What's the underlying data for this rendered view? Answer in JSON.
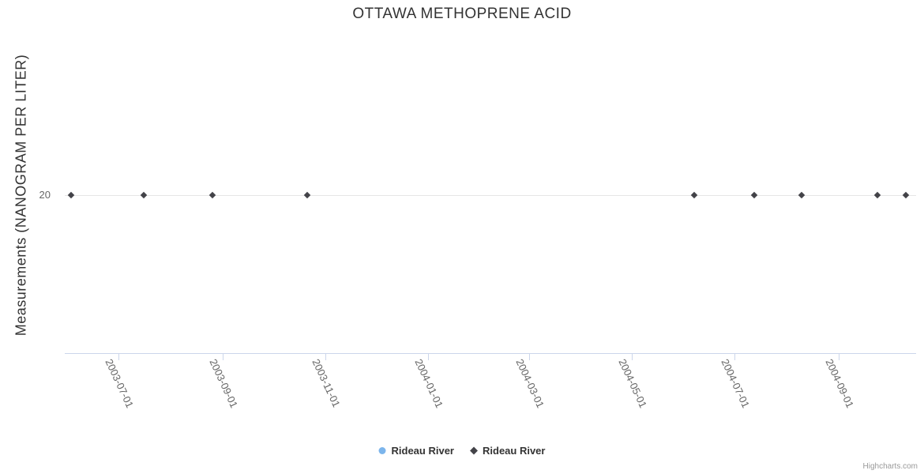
{
  "credits": {
    "label": "Highcharts.com"
  },
  "colors": {
    "title_text": "#333333",
    "axis_title_text": "#333333",
    "axis_label_text": "#666666",
    "axis_line": "#ccd6eb",
    "gridline": "#e6e6e6",
    "legend_text": "#333333",
    "credits_text": "#999999",
    "series_1": "#7cb5ec",
    "series_2": "#434348"
  },
  "chart_data": {
    "type": "scatter",
    "title": "OTTAWA METHOPRENE ACID",
    "xlabel": "",
    "ylabel": "Measurements (NANOGRAM PER LITER)",
    "x_ticks": [
      "2003-07-01",
      "2003-09-01",
      "2003-11-01",
      "2004-01-01",
      "2004-03-01",
      "2004-05-01",
      "2004-07-01",
      "2004-09-01"
    ],
    "x_tick_rotation_deg": 65,
    "y_ticks": [
      20
    ],
    "x_min": "2003-05-30",
    "x_max": "2004-10-17",
    "y_min": 0,
    "y_max": 40,
    "grid": "single horizontal gridline at y=20",
    "legend_position": "bottom-center",
    "series": [
      {
        "name": "Rideau River",
        "marker": "circle",
        "color": "#7cb5ec",
        "points": []
      },
      {
        "name": "Rideau River",
        "marker": "diamond",
        "color": "#434348",
        "points": [
          {
            "x": "2003-06-03",
            "y": 20
          },
          {
            "x": "2003-07-16",
            "y": 20
          },
          {
            "x": "2003-08-26",
            "y": 20
          },
          {
            "x": "2003-10-21",
            "y": 20
          },
          {
            "x": "2004-06-07",
            "y": 20
          },
          {
            "x": "2004-07-13",
            "y": 20
          },
          {
            "x": "2004-08-10",
            "y": 20
          },
          {
            "x": "2004-09-24",
            "y": 20
          },
          {
            "x": "2004-10-11",
            "y": 20
          }
        ]
      }
    ]
  }
}
